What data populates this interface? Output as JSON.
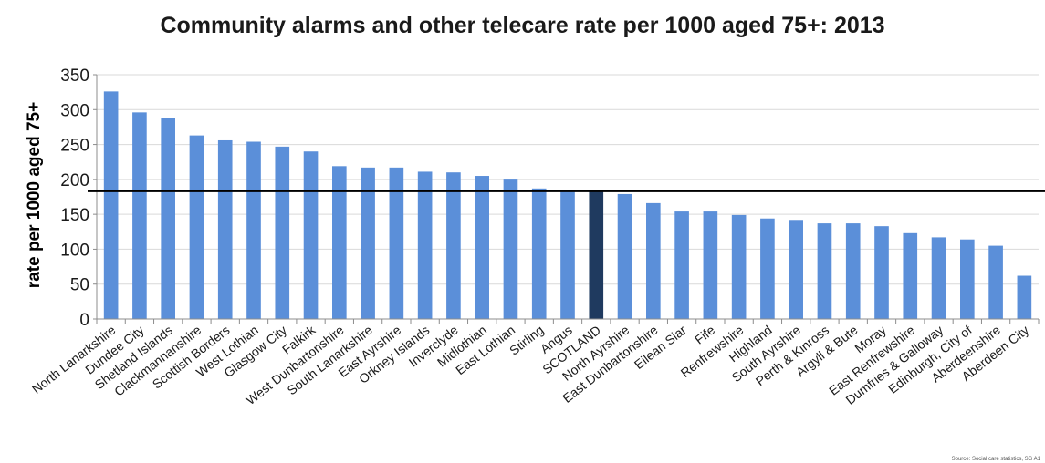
{
  "chart_data": {
    "type": "bar",
    "title": "Community alarms and other telecare rate per 1000 aged 75+: 2013",
    "xlabel": "",
    "ylabel": "rate per 1000 aged 75+",
    "ylim": [
      0,
      350
    ],
    "yticks": [
      0,
      50,
      100,
      150,
      200,
      250,
      300,
      350
    ],
    "grid": true,
    "legend": "none",
    "reference_line": 183,
    "highlight_category": "SCOTLAND",
    "categories": [
      "North Lanarkshire",
      "Dundee City",
      "Shetland Islands",
      "Clackmannanshire",
      "Scottish Borders",
      "West Lothian",
      "Glasgow City",
      "Falkirk",
      "West Dunbartonshire",
      "South Lanarkshire",
      "East Ayrshire",
      "Orkney Islands",
      "Inverclyde",
      "Midlothian",
      "East Lothian",
      "Stirling",
      "Angus",
      "SCOTLAND",
      "North Ayrshire",
      "East Dunbartonshire",
      "Eilean Siar",
      "Fife",
      "Renfrewshire",
      "Highland",
      "South Ayrshire",
      "Perth & Kinross",
      "Argyll & Bute",
      "Moray",
      "East Renfrewshire",
      "Dumfries & Galloway",
      "Edinburgh, City of",
      "Aberdeenshire",
      "Aberdeen City"
    ],
    "values": [
      326,
      296,
      288,
      263,
      256,
      254,
      247,
      240,
      219,
      217,
      217,
      211,
      210,
      205,
      201,
      187,
      185,
      183,
      179,
      166,
      154,
      154,
      149,
      144,
      142,
      137,
      137,
      133,
      123,
      117,
      114,
      105,
      62
    ],
    "colors": {
      "bar": "#5b8fd9",
      "highlight": "#1f3a5f",
      "grid": "#d9d9d9",
      "axis": "#8c8c8c",
      "reference_line": "#000000"
    },
    "source_note": "Source: Social care statistics, SG A1"
  }
}
